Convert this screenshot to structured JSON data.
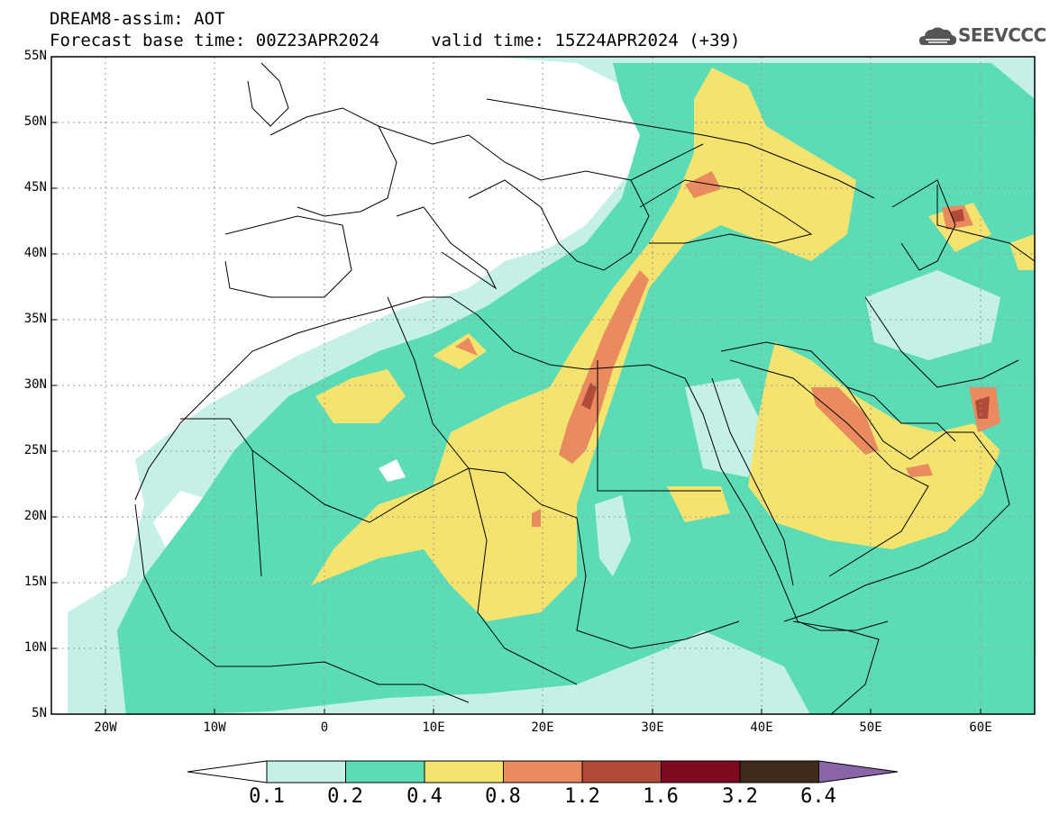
{
  "header": {
    "line1": "DREAM8-assim: AOT",
    "line2": "Forecast base time: 00Z23APR2024     valid time: 15Z24APR2024 (+39)"
  },
  "logo": {
    "text": "SEEVCCC",
    "icon": "cloud-icon"
  },
  "map": {
    "lon_range": [
      -25,
      65
    ],
    "lat_range": [
      5,
      55
    ],
    "lat_labels": [
      "55N",
      "50N",
      "45N",
      "40N",
      "35N",
      "30N",
      "25N",
      "20N",
      "15N",
      "10N",
      "5N"
    ],
    "lon_labels": [
      "20W",
      "10W",
      "0",
      "10E",
      "20E",
      "30E",
      "40E",
      "50E",
      "60E"
    ],
    "grid": "dotted"
  },
  "colorbar": {
    "labels": [
      "0.1",
      "0.2",
      "0.4",
      "0.8",
      "1.2",
      "1.6",
      "3.2",
      "6.4"
    ],
    "colors": [
      "#c5f0e8",
      "#5bdcb7",
      "#f4e36e",
      "#e98a5f",
      "#b14a38",
      "#7e0a22",
      "#402a1a",
      "#8a64a8"
    ]
  }
}
